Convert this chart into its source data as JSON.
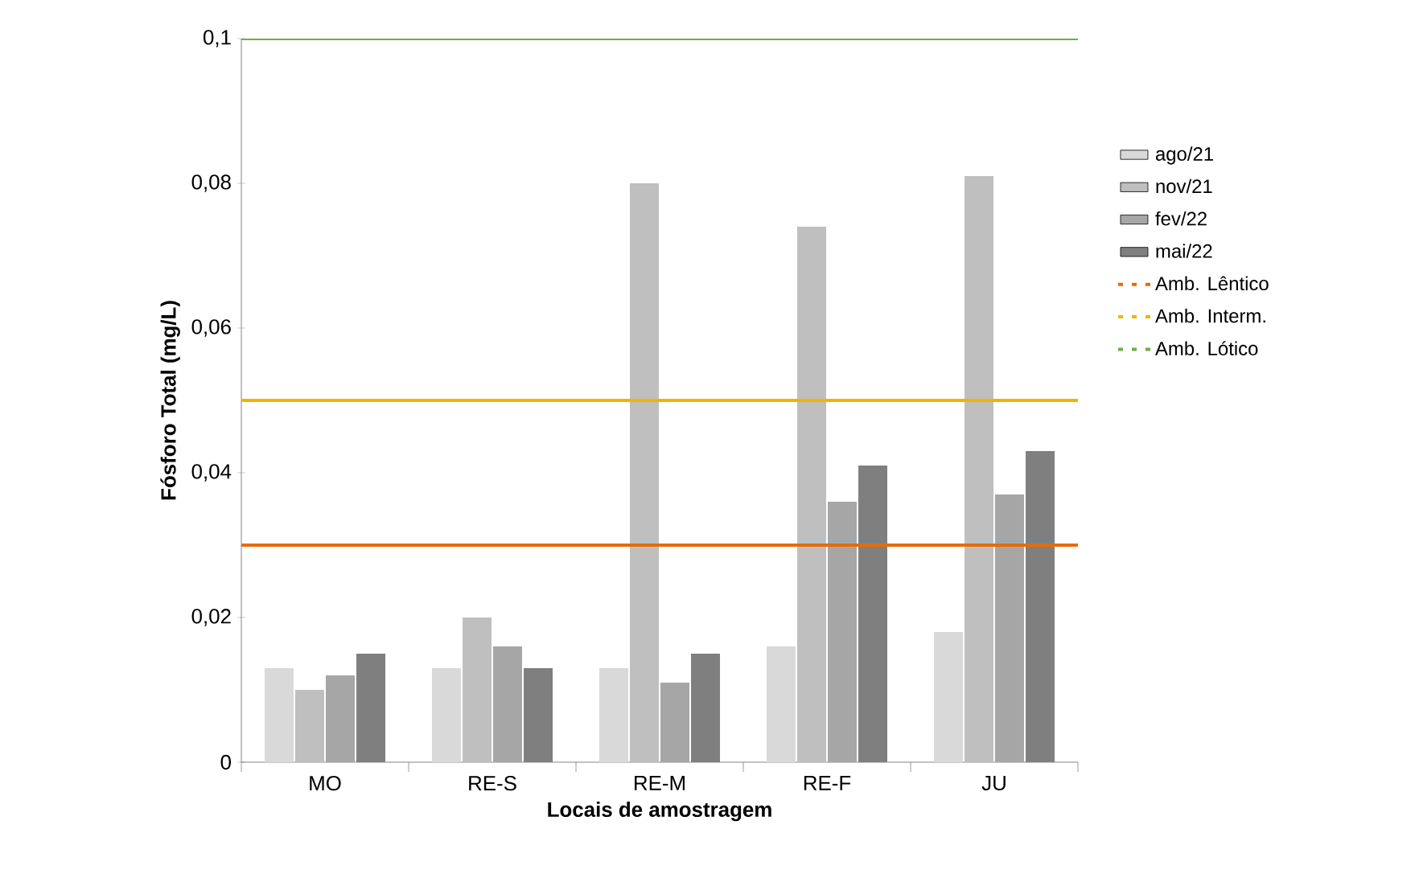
{
  "chart_data": {
    "type": "bar",
    "xlabel": "Locais de amostragem",
    "ylabel": "Fósforo Total (mg/L)",
    "categories": [
      "MO",
      "RE-S",
      "RE-M",
      "RE-F",
      "JU"
    ],
    "series": [
      {
        "name": "ago/21",
        "color": "#d9d9d9",
        "values": [
          0.013,
          0.013,
          0.013,
          0.016,
          0.018
        ]
      },
      {
        "name": "nov/21",
        "color": "#bfbfbf",
        "values": [
          0.01,
          0.02,
          0.08,
          0.074,
          0.081
        ]
      },
      {
        "name": "fev/22",
        "color": "#a6a6a6",
        "values": [
          0.012,
          0.016,
          0.011,
          0.036,
          0.037
        ]
      },
      {
        "name": "mai/22",
        "color": "#7f7f7f",
        "values": [
          0.015,
          0.013,
          0.015,
          0.041,
          0.043
        ]
      }
    ],
    "ref_lines": [
      {
        "axis": "y",
        "value": 0.03,
        "label": "Amb. Lêntico",
        "color": "#e46c0a"
      },
      {
        "axis": "y",
        "value": 0.05,
        "label": "Amb. Interm.",
        "color": "#f0b400"
      },
      {
        "axis": "y",
        "value": 0.1,
        "label": "Amb. Lótico",
        "color": "#70ad47"
      }
    ],
    "ylim": [
      0,
      0.1
    ],
    "yticks": [
      {
        "value": 0,
        "label": "0"
      },
      {
        "value": 0.02,
        "label": "0,02"
      },
      {
        "value": 0.04,
        "label": "0,04"
      },
      {
        "value": 0.06,
        "label": "0,06"
      },
      {
        "value": 0.08,
        "label": "0,08"
      },
      {
        "value": 0.1,
        "label": "0,1"
      }
    ],
    "legend": "right"
  }
}
